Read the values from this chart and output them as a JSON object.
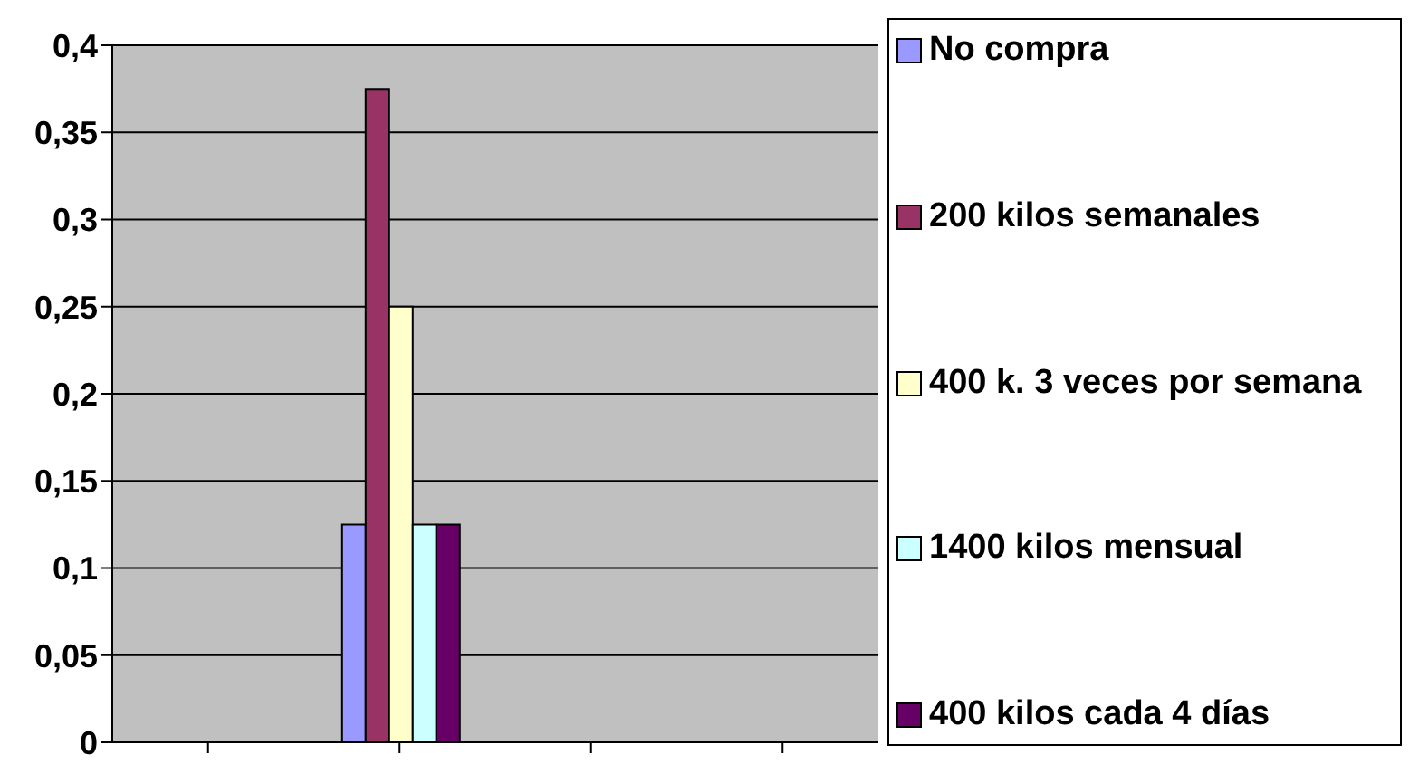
{
  "chart_data": {
    "type": "bar",
    "categories": [
      null,
      null,
      null,
      null
    ],
    "series": [
      {
        "name": "No compra",
        "color": "#9999ff",
        "values": [
          null,
          0.125,
          null,
          null
        ]
      },
      {
        "name": "200 kilos semanales",
        "color": "#993366",
        "values": [
          null,
          0.375,
          null,
          null
        ]
      },
      {
        "name": "400 k. 3 veces por semana",
        "color": "#ffffcc",
        "values": [
          null,
          0.25,
          null,
          null
        ]
      },
      {
        "name": "1400 kilos mensual",
        "color": "#ccffff",
        "values": [
          null,
          0.125,
          null,
          null
        ]
      },
      {
        "name": "400 kilos cada 4 días",
        "color": "#660066",
        "values": [
          null,
          0.125,
          null,
          null
        ]
      }
    ],
    "ylim": [
      0,
      0.4
    ],
    "yticks": [
      {
        "value": 0,
        "label": "0"
      },
      {
        "value": 0.05,
        "label": "0,05"
      },
      {
        "value": 0.1,
        "label": "0,1"
      },
      {
        "value": 0.15,
        "label": "0,15"
      },
      {
        "value": 0.2,
        "label": "0,2"
      },
      {
        "value": 0.25,
        "label": "0,25"
      },
      {
        "value": 0.3,
        "label": "0,3"
      },
      {
        "value": 0.35,
        "label": "0,35"
      },
      {
        "value": 0.4,
        "label": "0,4"
      }
    ],
    "grid": "y",
    "legend": "right"
  }
}
